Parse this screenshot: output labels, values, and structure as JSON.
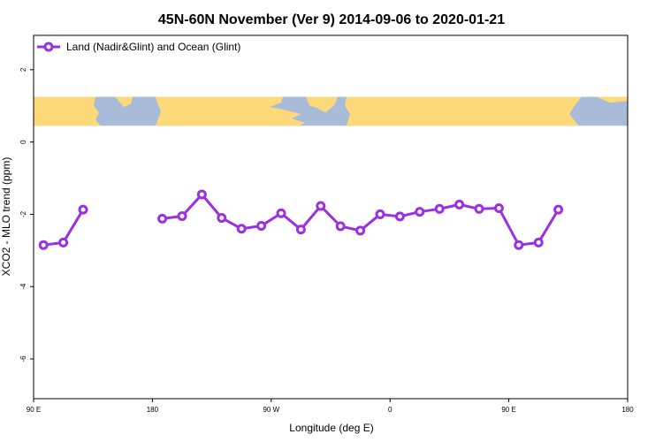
{
  "chart_data": {
    "type": "line",
    "title": "45N-60N November (Ver 9)   2014-09-06 to 2020-01-21",
    "xlabel": "Longitude (deg E)",
    "ylabel": "XCO2 - MLO trend (ppm)",
    "xlim": [
      90,
      540
    ],
    "ylim": [
      -7.1,
      2.95
    ],
    "x_ticks": [
      {
        "value": 90,
        "label": "90 E"
      },
      {
        "value": 180,
        "label": "180"
      },
      {
        "value": 270,
        "label": "90 W"
      },
      {
        "value": 360,
        "label": "0"
      },
      {
        "value": 450,
        "label": "90 E"
      },
      {
        "value": 540,
        "label": "180"
      }
    ],
    "y_ticks": [
      {
        "value": 2,
        "label": "2"
      },
      {
        "value": 0,
        "label": "0"
      },
      {
        "value": -2,
        "label": "-2"
      },
      {
        "value": -4,
        "label": "-4"
      },
      {
        "value": -6,
        "label": "-6"
      }
    ],
    "map_band": {
      "ymin": 0.45,
      "ymax": 1.25,
      "ocean_color": "#a8bcda",
      "land_color": "#fdd97a"
    },
    "legend_position": "top-left",
    "grid": false,
    "series": [
      {
        "name": "Land (Nadir&Glint) and Ocean (Glint)",
        "color": "#9b30e0",
        "segments": [
          [
            [
              97.5,
              -2.85
            ],
            [
              112.5,
              -2.78
            ],
            [
              127.5,
              -1.87
            ]
          ],
          [
            [
              187.5,
              -2.12
            ],
            [
              202.5,
              -2.05
            ],
            [
              217.5,
              -1.45
            ],
            [
              232.5,
              -2.1
            ],
            [
              247.5,
              -2.4
            ],
            [
              262.5,
              -2.32
            ],
            [
              277.5,
              -1.97
            ],
            [
              292.5,
              -2.42
            ],
            [
              307.5,
              -1.77
            ],
            [
              322.5,
              -2.33
            ],
            [
              337.5,
              -2.45
            ],
            [
              352.5,
              -2.0
            ],
            [
              367.5,
              -2.06
            ],
            [
              382.5,
              -1.93
            ],
            [
              397.5,
              -1.85
            ],
            [
              412.5,
              -1.73
            ],
            [
              427.5,
              -1.85
            ],
            [
              442.5,
              -1.83
            ],
            [
              457.5,
              -2.85
            ],
            [
              472.5,
              -2.78
            ],
            [
              487.5,
              -1.87
            ]
          ]
        ]
      }
    ]
  }
}
